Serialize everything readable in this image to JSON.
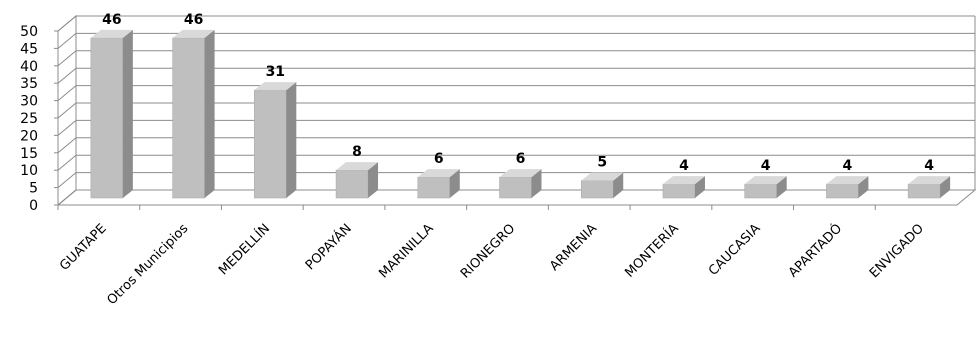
{
  "chart_data": {
    "type": "bar",
    "title": "",
    "xlabel": "",
    "ylabel": "",
    "ylim": [
      0,
      50
    ],
    "yticks": [
      0,
      5,
      10,
      15,
      20,
      25,
      30,
      35,
      40,
      45,
      50
    ],
    "grid": true,
    "style": "3d-column",
    "colors": {
      "bar_front": "#bfbfbf",
      "bar_side": "#8c8c8c",
      "bar_top": "#d9d9d9",
      "grid": "#8c8c8c"
    },
    "categories": [
      "GUATAPE",
      "Otros Municipios",
      "MEDELLÍN",
      "POPAYÁN",
      "MARINILLA",
      "RIONEGRO",
      "ARMENIA",
      "MONTERÍA",
      "CAUCASIA",
      "APARTADÓ",
      "ENVIGADO"
    ],
    "values": [
      46,
      46,
      31,
      8,
      6,
      6,
      5,
      4,
      4,
      4,
      4
    ],
    "data_labels": [
      "46",
      "46",
      "31",
      "8",
      "6",
      "6",
      "5",
      "4",
      "4",
      "4",
      "4"
    ]
  }
}
